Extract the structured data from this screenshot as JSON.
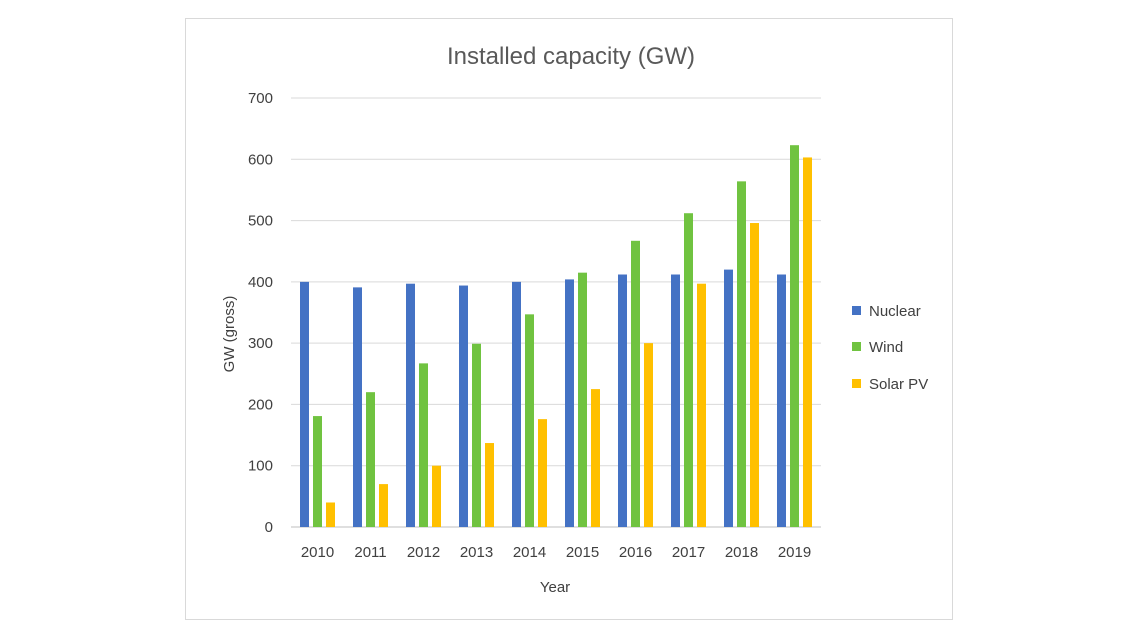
{
  "chart_data": {
    "type": "bar",
    "title": "Installed capacity (GW)",
    "xlabel": "Year",
    "ylabel": "GW (gross)",
    "categories": [
      "2010",
      "2011",
      "2012",
      "2013",
      "2014",
      "2015",
      "2016",
      "2017",
      "2018",
      "2019"
    ],
    "ylim": [
      0,
      700
    ],
    "yticks": [
      "0",
      "100",
      "200",
      "300",
      "400",
      "500",
      "600",
      "700"
    ],
    "grid": true,
    "legend_position": "right",
    "series": [
      {
        "name": "Nuclear",
        "color": "#4472C4",
        "values": [
          400,
          391,
          397,
          394,
          400,
          404,
          412,
          412,
          420,
          412
        ]
      },
      {
        "name": "Wind",
        "color": "#70C340",
        "values": [
          181,
          220,
          267,
          299,
          347,
          415,
          467,
          512,
          564,
          623
        ]
      },
      {
        "name": "Solar PV",
        "color": "#FFC000",
        "values": [
          40,
          70,
          100,
          137,
          176,
          225,
          300,
          397,
          496,
          603
        ]
      }
    ]
  }
}
